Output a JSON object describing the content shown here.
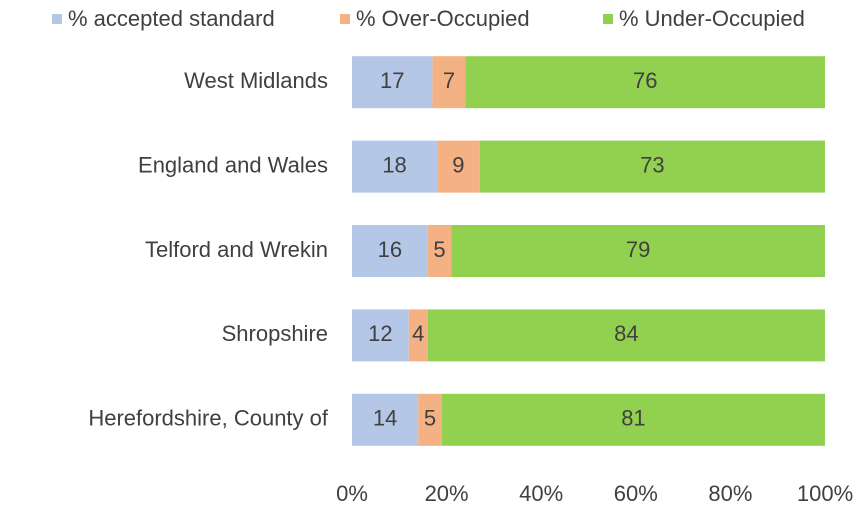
{
  "chart_data": {
    "type": "bar",
    "orientation": "horizontal",
    "stacked": true,
    "categories": [
      "West Midlands",
      "England and Wales",
      "Telford and Wrekin",
      "Shropshire",
      "Herefordshire, County of"
    ],
    "series": [
      {
        "name": "% accepted standard",
        "color": "#b4c7e7",
        "values": [
          17,
          18,
          16,
          12,
          14
        ]
      },
      {
        "name": "% Over-Occupied",
        "color": "#f4b183",
        "values": [
          7,
          9,
          5,
          4,
          5
        ]
      },
      {
        "name": "% Under-Occupied",
        "color": "#92d050",
        "values": [
          76,
          73,
          79,
          84,
          81
        ]
      }
    ],
    "xlim": [
      0,
      100
    ],
    "xticks": [
      {
        "value": 0,
        "label": "0%"
      },
      {
        "value": 20,
        "label": "20%"
      },
      {
        "value": 40,
        "label": "40%"
      },
      {
        "value": 60,
        "label": "60%"
      },
      {
        "value": 80,
        "label": "80%"
      },
      {
        "value": 100,
        "label": "100%"
      }
    ],
    "legend": "top",
    "grid": false
  }
}
